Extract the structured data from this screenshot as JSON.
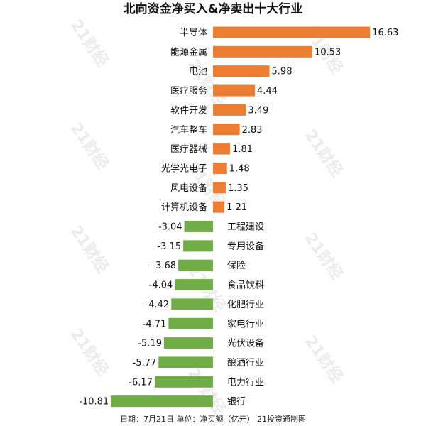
{
  "chart_data": {
    "type": "bar",
    "orientation": "horizontal",
    "title": "北向资金净买入&净卖出十大行业",
    "categories": [
      "半导体",
      "能源金属",
      "电池",
      "医疗服务",
      "软件开发",
      "汽车整车",
      "医疗器械",
      "光学光电子",
      "风电设备",
      "计算机设备",
      "工程建设",
      "专用设备",
      "保险",
      "食品饮料",
      "化肥行业",
      "家电行业",
      "光伏设备",
      "酿酒行业",
      "电力行业",
      "银行"
    ],
    "values": [
      16.63,
      10.53,
      5.98,
      4.44,
      3.49,
      2.83,
      1.81,
      1.48,
      1.35,
      1.21,
      -3.04,
      -3.15,
      -3.68,
      -4.04,
      -4.42,
      -4.71,
      -5.19,
      -5.77,
      -6.17,
      -10.81
    ],
    "value_labels": [
      "16.63",
      "10.53",
      "5.98",
      "4.44",
      "3.49",
      "2.83",
      "1.81",
      "1.48",
      "1.35",
      "1.21",
      "-3.04",
      "-3.15",
      "-3.68",
      "-4.04",
      "-4.42",
      "-4.71",
      "-5.19",
      "-5.77",
      "-6.17",
      "-10.81"
    ],
    "colors": {
      "positive": "#ED7D31",
      "negative": "#70AD47"
    },
    "footer": "日期：7月21日 单位：净买额（亿元） 21投资通制图",
    "watermark": "21财经",
    "grid": false,
    "legend": "none"
  }
}
